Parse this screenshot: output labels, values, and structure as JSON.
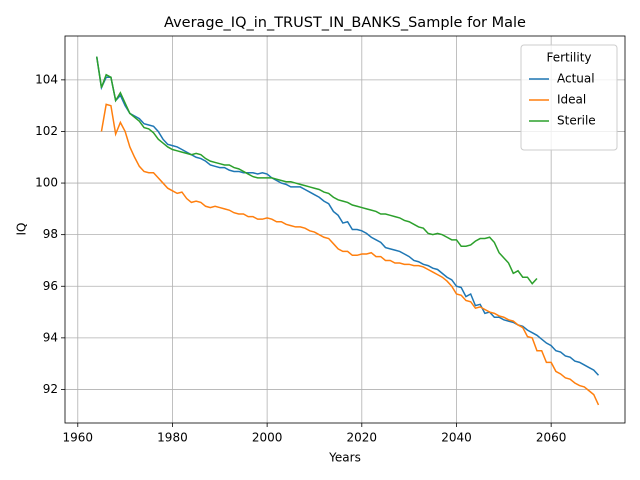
{
  "chart_data": {
    "type": "line",
    "title": "Average_IQ_in_TRUST_IN_BANKS_Sample for Male",
    "xlabel": "Years",
    "ylabel": "IQ",
    "legend_title": "Fertility",
    "legend": "upper right",
    "grid": true,
    "xlim": [
      1957.3,
      2075.6
    ],
    "ylim": [
      90.7,
      105.7
    ],
    "xticks": [
      1960,
      1980,
      2000,
      2020,
      2040,
      2060
    ],
    "yticks": [
      92,
      94,
      96,
      98,
      100,
      102,
      104
    ],
    "x": [
      1964,
      1965,
      1966,
      1967,
      1968,
      1969,
      1970,
      1971,
      1972,
      1973,
      1974,
      1975,
      1976,
      1977,
      1978,
      1979,
      1980,
      1981,
      1982,
      1983,
      1984,
      1985,
      1986,
      1987,
      1988,
      1989,
      1990,
      1991,
      1992,
      1993,
      1994,
      1995,
      1996,
      1997,
      1998,
      1999,
      2000,
      2001,
      2002,
      2003,
      2004,
      2005,
      2006,
      2007,
      2008,
      2009,
      2010,
      2011,
      2012,
      2013,
      2014,
      2015,
      2016,
      2017,
      2018,
      2019,
      2020,
      2021,
      2022,
      2023,
      2024,
      2025,
      2026,
      2027,
      2028,
      2029,
      2030,
      2031,
      2032,
      2033,
      2034,
      2035,
      2036,
      2037,
      2038,
      2039,
      2040,
      2041,
      2042,
      2043,
      2044,
      2045,
      2046,
      2047,
      2048,
      2049,
      2050,
      2051,
      2052,
      2053,
      2054,
      2055,
      2056,
      2057,
      2058,
      2059,
      2060,
      2061,
      2062,
      2063,
      2064,
      2065,
      2066,
      2067,
      2068,
      2069,
      2070
    ],
    "series": [
      {
        "name": "Actual",
        "color": "#1f77b4",
        "values": [
          104.9,
          103.7,
          104.1,
          104.1,
          103.2,
          103.4,
          103.0,
          102.7,
          102.6,
          102.5,
          102.3,
          102.25,
          102.2,
          102.0,
          101.7,
          101.5,
          101.45,
          101.4,
          101.3,
          101.2,
          101.1,
          101.0,
          100.95,
          100.85,
          100.7,
          100.65,
          100.6,
          100.6,
          100.5,
          100.45,
          100.45,
          100.4,
          100.4,
          100.4,
          100.35,
          100.4,
          100.35,
          100.2,
          100.1,
          100.0,
          99.95,
          99.85,
          99.85,
          99.85,
          99.75,
          99.65,
          99.55,
          99.45,
          99.3,
          99.2,
          98.9,
          98.75,
          98.45,
          98.5,
          98.2,
          98.2,
          98.15,
          98.05,
          97.9,
          97.8,
          97.7,
          97.5,
          97.45,
          97.4,
          97.35,
          97.25,
          97.15,
          97.0,
          96.95,
          96.85,
          96.8,
          96.7,
          96.65,
          96.5,
          96.35,
          96.25,
          96.0,
          95.95,
          95.6,
          95.7,
          95.25,
          95.3,
          94.95,
          95.0,
          94.8,
          94.8,
          94.7,
          94.65,
          94.6,
          94.5,
          94.45,
          94.3,
          94.2,
          94.1,
          93.95,
          93.8,
          93.7,
          93.5,
          93.45,
          93.3,
          93.25,
          93.1,
          93.05,
          92.95,
          92.85,
          92.75,
          92.55
        ]
      },
      {
        "name": "Ideal",
        "color": "#ff7f0e",
        "values": [
          null,
          102.0,
          103.05,
          103.0,
          101.9,
          102.35,
          102.0,
          101.4,
          101.0,
          100.65,
          100.45,
          100.4,
          100.4,
          100.2,
          100.0,
          99.8,
          99.7,
          99.6,
          99.65,
          99.4,
          99.25,
          99.3,
          99.25,
          99.1,
          99.05,
          99.1,
          99.05,
          99.0,
          98.95,
          98.85,
          98.8,
          98.8,
          98.7,
          98.7,
          98.6,
          98.6,
          98.65,
          98.6,
          98.5,
          98.5,
          98.4,
          98.35,
          98.3,
          98.3,
          98.25,
          98.15,
          98.1,
          98.0,
          97.9,
          97.85,
          97.65,
          97.45,
          97.35,
          97.35,
          97.2,
          97.2,
          97.25,
          97.25,
          97.3,
          97.15,
          97.15,
          97.0,
          97.0,
          96.9,
          96.9,
          96.85,
          96.85,
          96.8,
          96.8,
          96.75,
          96.65,
          96.55,
          96.45,
          96.35,
          96.2,
          96.0,
          95.7,
          95.65,
          95.45,
          95.4,
          95.15,
          95.2,
          95.1,
          95.0,
          94.95,
          94.85,
          94.8,
          94.7,
          94.65,
          94.5,
          94.4,
          94.05,
          94.0,
          93.5,
          93.5,
          93.05,
          93.05,
          92.7,
          92.6,
          92.45,
          92.4,
          92.25,
          92.15,
          92.1,
          91.95,
          91.8,
          91.4
        ]
      },
      {
        "name": "Sterile",
        "color": "#2ca02c",
        "values": [
          104.9,
          103.7,
          104.2,
          104.1,
          103.2,
          103.5,
          103.1,
          102.7,
          102.55,
          102.4,
          102.15,
          102.1,
          101.95,
          101.7,
          101.55,
          101.4,
          101.3,
          101.25,
          101.2,
          101.15,
          101.1,
          101.15,
          101.1,
          100.95,
          100.85,
          100.8,
          100.75,
          100.7,
          100.7,
          100.6,
          100.55,
          100.45,
          100.35,
          100.25,
          100.2,
          100.2,
          100.2,
          100.2,
          100.15,
          100.1,
          100.05,
          100.05,
          100.0,
          99.95,
          99.9,
          99.85,
          99.8,
          99.75,
          99.65,
          99.6,
          99.45,
          99.35,
          99.3,
          99.25,
          99.15,
          99.1,
          99.05,
          99.0,
          98.95,
          98.9,
          98.8,
          98.8,
          98.75,
          98.7,
          98.65,
          98.55,
          98.5,
          98.4,
          98.3,
          98.25,
          98.05,
          98.0,
          98.05,
          98.0,
          97.9,
          97.8,
          97.8,
          97.55,
          97.55,
          97.6,
          97.75,
          97.85,
          97.85,
          97.9,
          97.7,
          97.3,
          97.1,
          96.9,
          96.5,
          96.6,
          96.35,
          96.35,
          96.1,
          96.3,
          null,
          null,
          null,
          null,
          null,
          null,
          null,
          null,
          null,
          null,
          null,
          null,
          null
        ]
      }
    ]
  }
}
